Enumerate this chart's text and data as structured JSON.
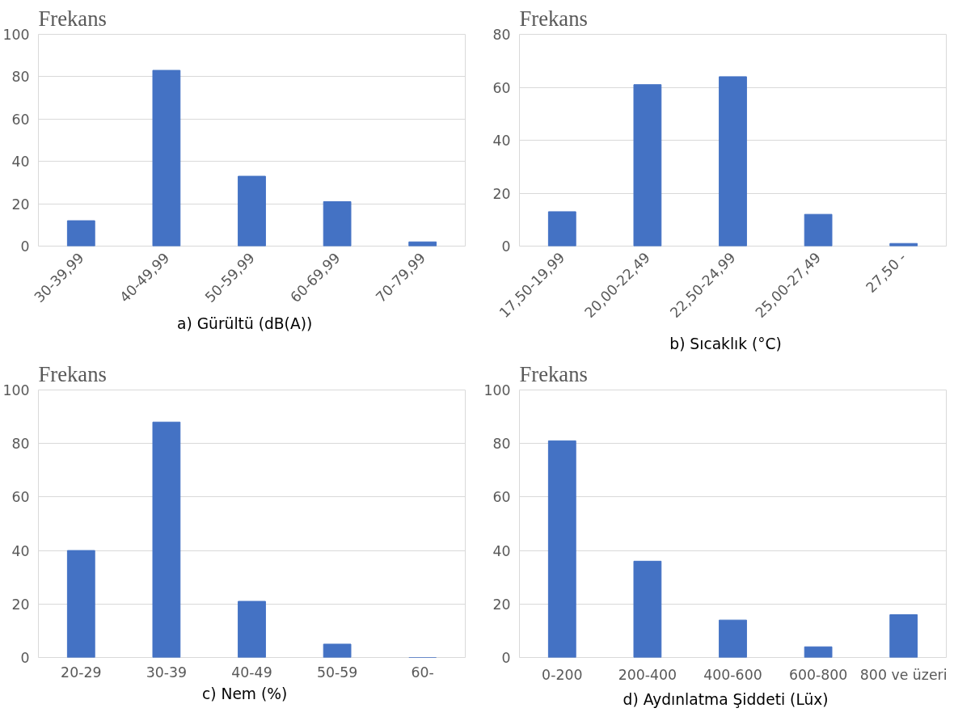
{
  "chart_data": [
    {
      "type": "bar",
      "title": "Frekans",
      "categories": [
        "30-39,99",
        "40-49,99",
        "50-59,99",
        "60-69,99",
        "70-79,99"
      ],
      "values": [
        12,
        83,
        33,
        21,
        2
      ],
      "color": "#4472c4",
      "ylim": [
        0,
        100
      ],
      "yticks": [
        0,
        20,
        40,
        60,
        80,
        100
      ],
      "grid": "y",
      "annotations": [
        "a)    Gürültü (dB(A))"
      ]
    },
    {
      "type": "bar",
      "title": "Frekans",
      "categories": [
        "17,50-19,99",
        "20,00-22,49",
        "22,50-24,99",
        "25,00-27,49",
        "27,50 -"
      ],
      "values": [
        13,
        61,
        64,
        12,
        1
      ],
      "color": "#4472c4",
      "ylim": [
        0,
        80
      ],
      "yticks": [
        0,
        20,
        40,
        60,
        80
      ],
      "grid": "y",
      "annotations": [
        "b)    Sıcaklık (°C)"
      ]
    },
    {
      "type": "bar",
      "title": "Frekans",
      "categories": [
        "20-29",
        "30-39",
        "40-49",
        "50-59",
        "60-"
      ],
      "values": [
        40,
        88,
        21,
        5,
        0
      ],
      "color": "#4472c4",
      "ylim": [
        0,
        100
      ],
      "yticks": [
        0,
        20,
        40,
        60,
        80,
        100
      ],
      "grid": "y",
      "annotations": [
        "c)    Nem (%)"
      ]
    },
    {
      "type": "bar",
      "title": "Frekans",
      "categories": [
        "0-200",
        "200-400",
        "400-600",
        "600-800",
        "800 ve üzeri"
      ],
      "values": [
        81,
        36,
        14,
        4,
        16
      ],
      "color": "#4472c4",
      "ylim": [
        0,
        100
      ],
      "yticks": [
        0,
        20,
        40,
        60,
        80,
        100
      ],
      "grid": "y",
      "annotations": [
        "d)    Aydınlatma Şiddeti (Lüx)"
      ]
    }
  ]
}
